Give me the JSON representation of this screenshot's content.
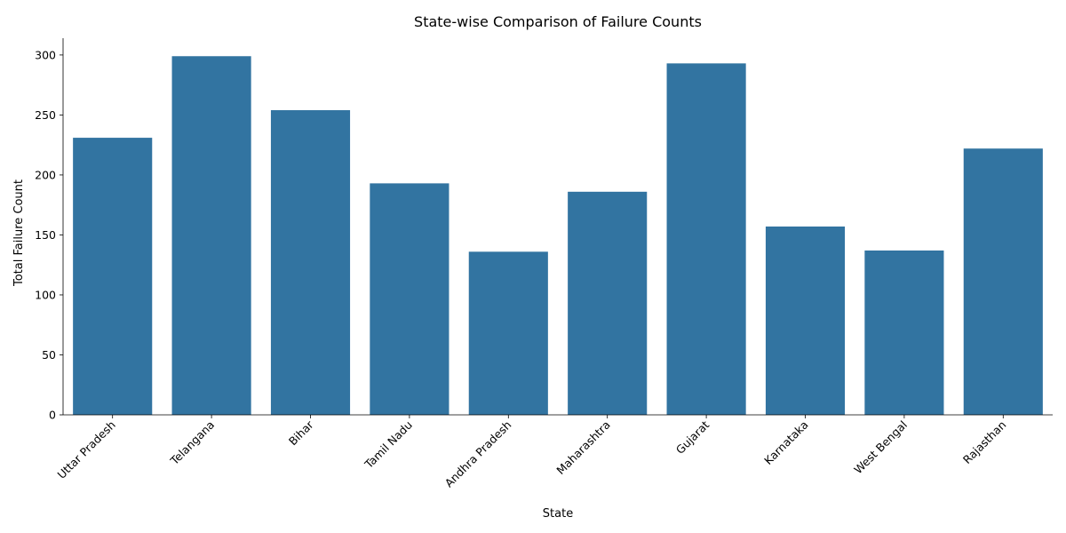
{
  "chart_data": {
    "type": "bar",
    "title": "State-wise Comparison of Failure Counts",
    "xlabel": "State",
    "ylabel": "Total Failure Count",
    "categories": [
      "Uttar Pradesh",
      "Telangana",
      "Bihar",
      "Tamil Nadu",
      "Andhra Pradesh",
      "Maharashtra",
      "Gujarat",
      "Karnataka",
      "West Bengal",
      "Rajasthan"
    ],
    "values": [
      231,
      299,
      254,
      193,
      136,
      186,
      293,
      157,
      137,
      222
    ],
    "ylim": [
      0,
      314
    ],
    "yticks": [
      0,
      50,
      100,
      150,
      200,
      250,
      300
    ],
    "bar_color": "#3274a1",
    "grid": false,
    "legend": "none"
  }
}
